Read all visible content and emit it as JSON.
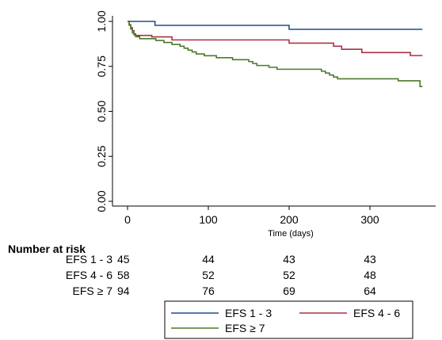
{
  "chart_data": {
    "type": "line",
    "subtype": "kaplan-meier step",
    "title": "",
    "xlabel": "Time (days)",
    "ylabel": "",
    "xlim": [
      -5,
      395
    ],
    "ylim": [
      0,
      1
    ],
    "xticks": [
      0,
      100,
      200,
      300
    ],
    "yticks": [
      0.0,
      0.25,
      0.5,
      0.75,
      1.0
    ],
    "xtick_labels": [
      "0",
      "100",
      "200",
      "300"
    ],
    "ytick_labels": [
      "0.00",
      "0.25",
      "0.50",
      "0.75",
      "1.00"
    ],
    "grid": false,
    "legend_position": "bottom",
    "series": [
      {
        "name": "EFS 1 - 3",
        "color": "#1f4e8c",
        "x": [
          0,
          34,
          200,
          365
        ],
        "y": [
          1.0,
          0.978,
          0.956,
          0.956
        ]
      },
      {
        "name": "EFS 4 - 6",
        "color": "#a83246",
        "x": [
          0,
          2,
          4,
          6,
          8,
          10,
          13,
          30,
          55,
          95,
          200,
          255,
          265,
          270,
          290,
          350,
          365
        ],
        "y": [
          1.0,
          0.982,
          0.965,
          0.948,
          0.931,
          0.922,
          0.922,
          0.914,
          0.897,
          0.897,
          0.879,
          0.862,
          0.845,
          0.845,
          0.827,
          0.81,
          0.81
        ]
      },
      {
        "name": "EFS ≥ 7",
        "color": "#4e7a2a",
        "x": [
          0,
          2,
          4,
          6,
          8,
          10,
          15,
          20,
          35,
          45,
          55,
          65,
          70,
          75,
          80,
          85,
          95,
          100,
          110,
          130,
          150,
          155,
          160,
          175,
          185,
          240,
          245,
          250,
          255,
          260,
          300,
          335,
          355,
          362,
          365
        ],
        "y": [
          1.0,
          0.979,
          0.957,
          0.936,
          0.925,
          0.915,
          0.904,
          0.904,
          0.894,
          0.883,
          0.872,
          0.862,
          0.851,
          0.84,
          0.83,
          0.819,
          0.809,
          0.809,
          0.798,
          0.787,
          0.777,
          0.766,
          0.755,
          0.745,
          0.734,
          0.723,
          0.713,
          0.702,
          0.691,
          0.681,
          0.681,
          0.67,
          0.67,
          0.638,
          0.638
        ]
      }
    ],
    "risk_table": {
      "title": "Number at risk",
      "times": [
        0,
        100,
        200,
        300
      ],
      "rows": [
        {
          "label": "EFS 1 - 3",
          "values": [
            "45",
            "44",
            "43",
            "43"
          ]
        },
        {
          "label": "EFS 4 - 6",
          "values": [
            "58",
            "52",
            "52",
            "48"
          ]
        },
        {
          "label": "EFS ≥ 7",
          "values": [
            "94",
            "76",
            "69",
            "64"
          ]
        }
      ]
    }
  }
}
